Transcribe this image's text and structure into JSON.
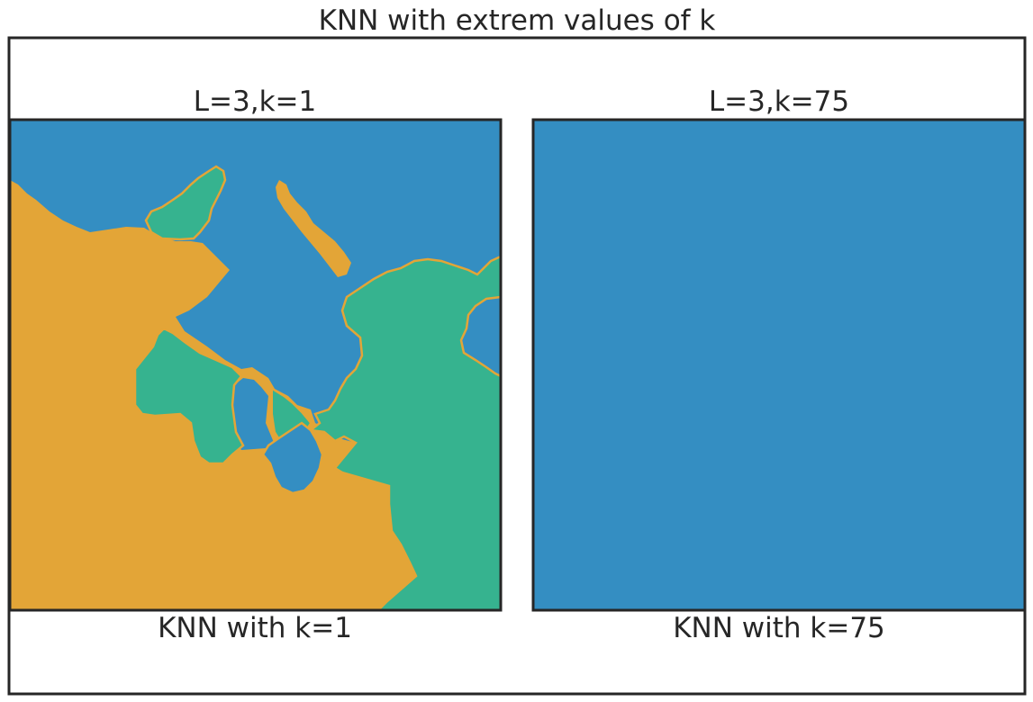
{
  "figure": {
    "title": "KNN with extrem values of k"
  },
  "colors": {
    "class_blue": "#348ec2",
    "class_orange": "#e3a537",
    "class_green": "#36b38f",
    "frame": "#262626"
  },
  "chart_data": [
    {
      "type": "heatmap",
      "title": "L=3,k=1",
      "xlabel": "KNN with k=1",
      "ylabel": "",
      "grid": false,
      "legend": "none",
      "classes": [
        "blue",
        "orange",
        "green"
      ],
      "regions": [
        {
          "class": "blue",
          "description": "background class covering top and center"
        },
        {
          "class": "orange",
          "description": "lower-left region"
        },
        {
          "class": "green",
          "description": "right and center-left islands"
        }
      ]
    },
    {
      "type": "heatmap",
      "title": "L=3,k=75",
      "xlabel": "KNN with k=75",
      "ylabel": "",
      "grid": false,
      "legend": "none",
      "classes": [
        "blue"
      ],
      "regions": [
        {
          "class": "blue",
          "description": "entire panel one class"
        }
      ]
    }
  ]
}
